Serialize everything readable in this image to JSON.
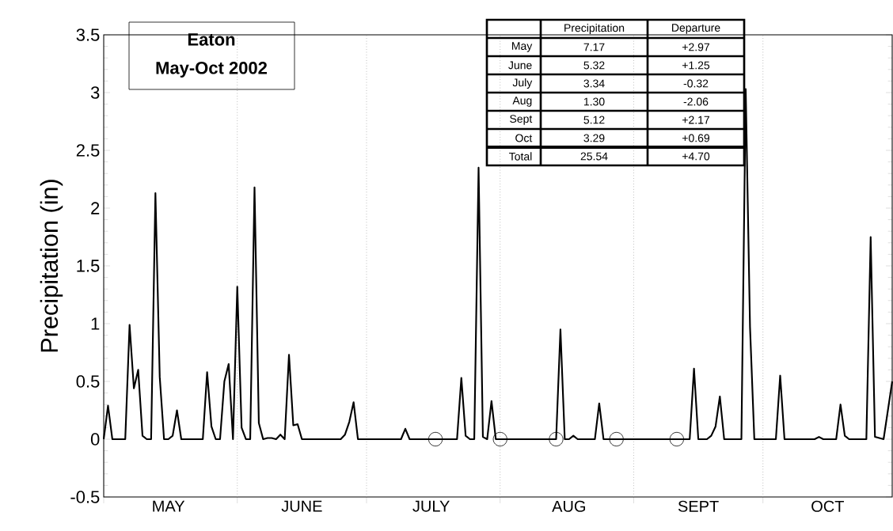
{
  "chart_data": {
    "type": "line",
    "title": "Eaton",
    "subtitle": "May-Oct 2002",
    "ylabel": "Precipitation (in)",
    "series": [
      {
        "color": "#000000",
        "line_style": "solid",
        "x": [
          "2002-05-01",
          "2002-05-02",
          "2002-05-03",
          "2002-05-06",
          "2002-05-07",
          "2002-05-08",
          "2002-05-09",
          "2002-05-10",
          "2002-05-11",
          "2002-05-12",
          "2002-05-13",
          "2002-05-14",
          "2002-05-15",
          "2002-05-16",
          "2002-05-17",
          "2002-05-18",
          "2002-05-19",
          "2002-05-24",
          "2002-05-25",
          "2002-05-26",
          "2002-05-27",
          "2002-05-28",
          "2002-05-29",
          "2002-05-30",
          "2002-05-31",
          "2002-06-01",
          "2002-06-02",
          "2002-06-03",
          "2002-06-04",
          "2002-06-05",
          "2002-06-06",
          "2002-06-07",
          "2002-06-08",
          "2002-06-09",
          "2002-06-10",
          "2002-06-11",
          "2002-06-12",
          "2002-06-13",
          "2002-06-14",
          "2002-06-15",
          "2002-06-16",
          "2002-06-25",
          "2002-06-26",
          "2002-06-27",
          "2002-06-28",
          "2002-06-29",
          "2002-07-09",
          "2002-07-10",
          "2002-07-11",
          "2002-07-22",
          "2002-07-23",
          "2002-07-24",
          "2002-07-25",
          "2002-07-26",
          "2002-07-27",
          "2002-07-28",
          "2002-07-29",
          "2002-07-30",
          "2002-07-31",
          "2002-08-14",
          "2002-08-15",
          "2002-08-16",
          "2002-08-17",
          "2002-08-18",
          "2002-08-19",
          "2002-08-23",
          "2002-08-24",
          "2002-08-25",
          "2002-09-14",
          "2002-09-15",
          "2002-09-16",
          "2002-09-18",
          "2002-09-19",
          "2002-09-20",
          "2002-09-21",
          "2002-09-22",
          "2002-09-26",
          "2002-09-27",
          "2002-09-28",
          "2002-09-29",
          "2002-10-04",
          "2002-10-05",
          "2002-10-06",
          "2002-10-13",
          "2002-10-14",
          "2002-10-15",
          "2002-10-18",
          "2002-10-19",
          "2002-10-20",
          "2002-10-21",
          "2002-10-25",
          "2002-10-26",
          "2002-10-27",
          "2002-10-29",
          "2002-10-31"
        ],
        "values": [
          0,
          0.29,
          0,
          0,
          0.99,
          0.44,
          0.6,
          0.03,
          0,
          0,
          2.13,
          0.54,
          0,
          0,
          0.03,
          0.25,
          0,
          0,
          0.58,
          0.11,
          0,
          0,
          0.5,
          0.65,
          0,
          1.32,
          0.1,
          0,
          0,
          2.18,
          0.14,
          0,
          0.01,
          0.01,
          0,
          0.04,
          0,
          0.73,
          0.12,
          0.13,
          0,
          0,
          0.04,
          0.15,
          0.32,
          0,
          0,
          0.09,
          0,
          0,
          0.53,
          0.03,
          0,
          0,
          2.35,
          0.02,
          0,
          0.33,
          0,
          0,
          0.95,
          0,
          0,
          0.03,
          0,
          0,
          0.31,
          0,
          0,
          0.61,
          0,
          0,
          0.03,
          0.11,
          0.37,
          0,
          0,
          3.03,
          0.97,
          0,
          0,
          0.55,
          0,
          0,
          0.02,
          0,
          0,
          0.3,
          0.03,
          0,
          0,
          1.75,
          0.02,
          0,
          0.5
        ]
      },
      {
        "type": "scatter",
        "color": "#000000",
        "marker": "circle",
        "x": [
          "2002-07-17",
          "2002-08-01",
          "2002-08-14",
          "2002-08-28",
          "2002-09-11"
        ],
        "values": [
          0,
          0,
          0,
          0,
          0
        ]
      }
    ],
    "xlim": [
      "2002-05-01",
      "2002-10-31"
    ],
    "xticks": [
      {
        "value": "2002-05-01",
        "label": null
      },
      {
        "value": "2002-05-16",
        "label": "MAY"
      },
      {
        "value": "2002-06-01",
        "label": null
      },
      {
        "value": "2002-06-16",
        "label": "JUNE"
      },
      {
        "value": "2002-07-01",
        "label": null
      },
      {
        "value": "2002-07-16",
        "label": "JULY"
      },
      {
        "value": "2002-08-01",
        "label": null
      },
      {
        "value": "2002-08-17",
        "label": "AUG"
      },
      {
        "value": "2002-09-01",
        "label": null
      },
      {
        "value": "2002-09-16",
        "label": "SEPT"
      },
      {
        "value": "2002-10-01",
        "label": null
      },
      {
        "value": "2002-10-16",
        "label": "OCT"
      }
    ],
    "ylim": [
      -0.5,
      3.5
    ],
    "yticks": [
      -0.5,
      0,
      0.5,
      1,
      1.5,
      2,
      2.5,
      3,
      3.5
    ],
    "ref_lines": [
      {
        "axis": "x",
        "value": "2002-06-01",
        "color": "#999999",
        "line_style": "dotted"
      },
      {
        "axis": "x",
        "value": "2002-07-01",
        "color": "#999999",
        "line_style": "dotted"
      },
      {
        "axis": "x",
        "value": "2002-08-01",
        "color": "#999999",
        "line_style": "dotted"
      },
      {
        "axis": "x",
        "value": "2002-09-01",
        "color": "#999999",
        "line_style": "dotted"
      },
      {
        "axis": "x",
        "value": "2002-10-01",
        "color": "#999999",
        "line_style": "dotted"
      }
    ],
    "annotations": [
      "Precipitation",
      "Departure",
      "May",
      "7.17",
      "+2.97",
      "June",
      "5.32",
      "+1.25",
      "July",
      "3.34",
      "-0.32",
      "Aug",
      "1.30",
      "-2.06",
      "Sept",
      "5.12",
      "+2.17",
      "Oct",
      "3.29",
      "+0.69",
      "Total",
      "25.54",
      "+4.70"
    ]
  }
}
